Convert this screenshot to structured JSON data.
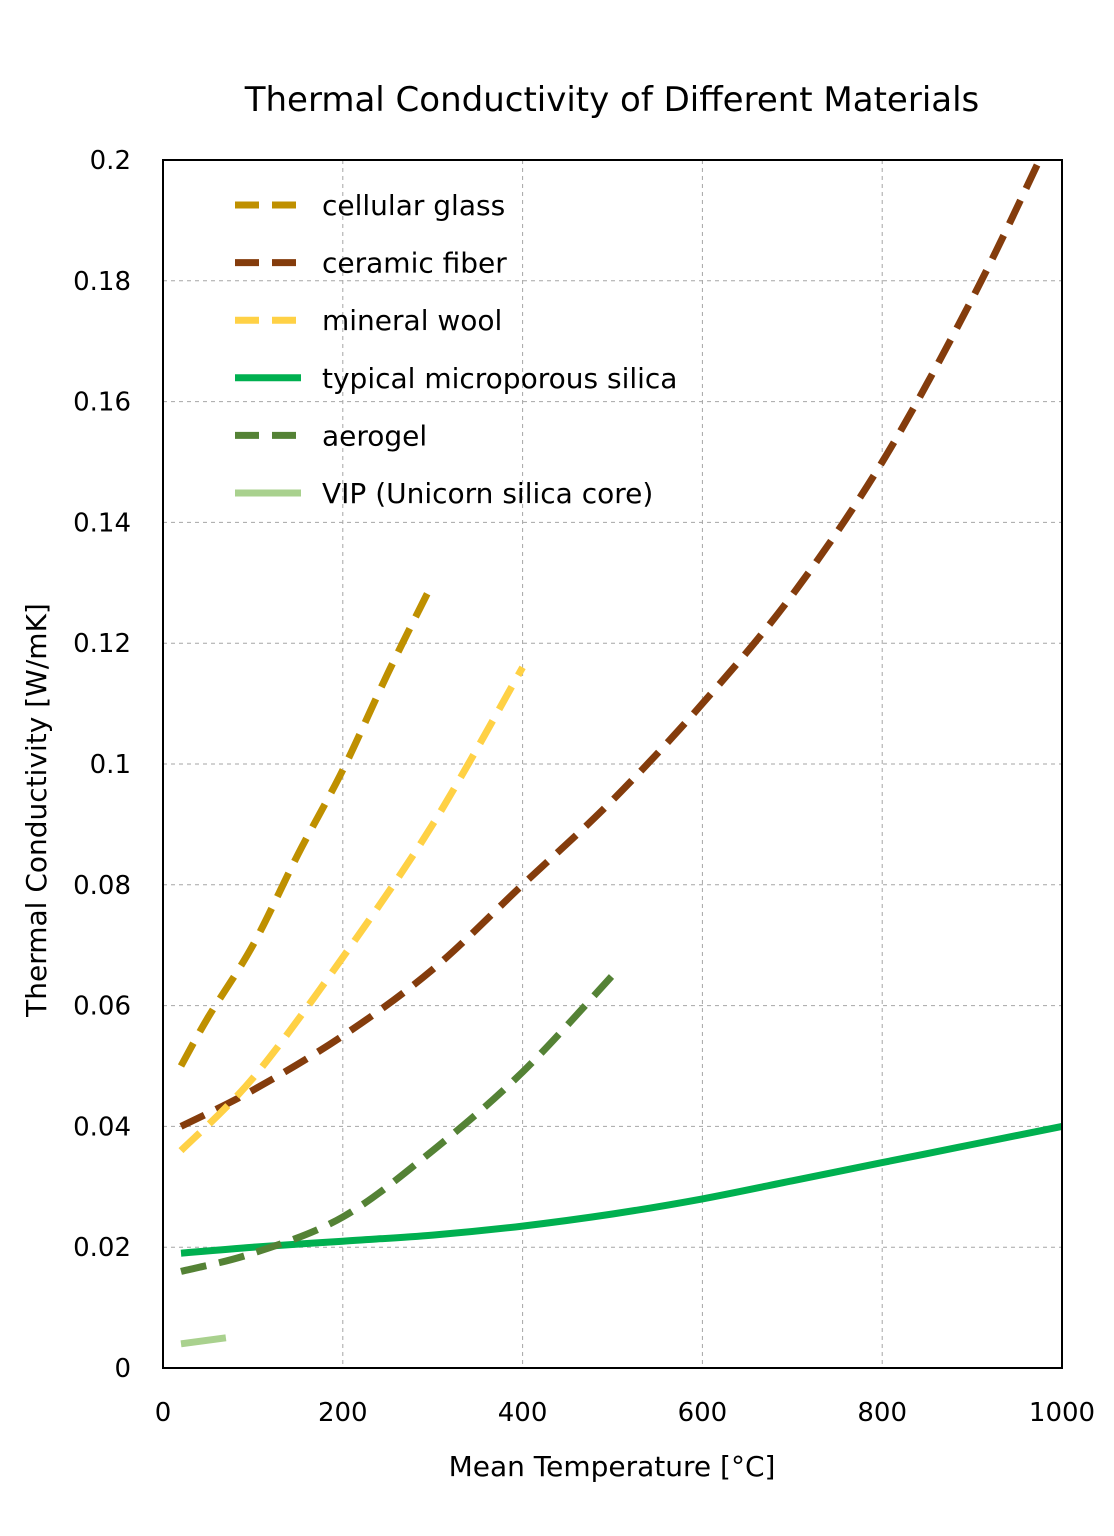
{
  "chart_data": {
    "type": "line",
    "title": "Thermal Conductivity of Different Materials",
    "xlabel": "Mean Temperature [°C]",
    "ylabel": "Thermal Conductivity [W/mK]",
    "xlim": [
      0,
      1000
    ],
    "ylim": [
      0,
      0.2
    ],
    "xticks": [
      0,
      200,
      400,
      600,
      800,
      1000
    ],
    "xtick_labels": [
      "0",
      "200",
      "400",
      "600",
      "800",
      "1000"
    ],
    "yticks": [
      0,
      0.02,
      0.04,
      0.06,
      0.08,
      0.1,
      0.12,
      0.14,
      0.16,
      0.18,
      0.2
    ],
    "ytick_labels": [
      "0",
      "0.02",
      "0.04",
      "0.06",
      "0.08",
      "0.1",
      "0.12",
      "0.14",
      "0.16",
      "0.18",
      "0.2"
    ],
    "grid": true,
    "legend_position": "top-left",
    "series": [
      {
        "name": "cellular glass",
        "color": "#bf9000",
        "style": "dashed",
        "x": [
          20,
          50,
          100,
          150,
          200,
          250,
          300
        ],
        "y": [
          0.05,
          0.058,
          0.07,
          0.085,
          0.099,
          0.115,
          0.13
        ]
      },
      {
        "name": "ceramic fiber",
        "color": "#843c0c",
        "style": "dashed",
        "x": [
          20,
          100,
          200,
          300,
          400,
          500,
          600,
          700,
          800,
          900,
          975
        ],
        "y": [
          0.04,
          0.046,
          0.055,
          0.066,
          0.08,
          0.094,
          0.11,
          0.128,
          0.15,
          0.177,
          0.2
        ]
      },
      {
        "name": "mineral wool",
        "color": "#ffd145",
        "style": "dashed",
        "x": [
          20,
          100,
          200,
          300,
          400
        ],
        "y": [
          0.036,
          0.048,
          0.068,
          0.09,
          0.116
        ]
      },
      {
        "name": "typical microporous silica",
        "color": "#00b050",
        "style": "solid",
        "x": [
          20,
          100,
          200,
          300,
          400,
          500,
          600,
          700,
          800,
          900,
          1000
        ],
        "y": [
          0.019,
          0.02,
          0.021,
          0.022,
          0.0235,
          0.0255,
          0.028,
          0.031,
          0.034,
          0.037,
          0.04
        ]
      },
      {
        "name": "aerogel",
        "color": "#548235",
        "style": "dashed",
        "x": [
          20,
          100,
          200,
          300,
          400,
          500
        ],
        "y": [
          0.016,
          0.019,
          0.025,
          0.036,
          0.049,
          0.065
        ]
      },
      {
        "name": "VIP (Unicorn silica core)",
        "color": "#a9d18e",
        "style": "solid",
        "x": [
          20,
          70
        ],
        "y": [
          0.004,
          0.005
        ]
      }
    ]
  }
}
